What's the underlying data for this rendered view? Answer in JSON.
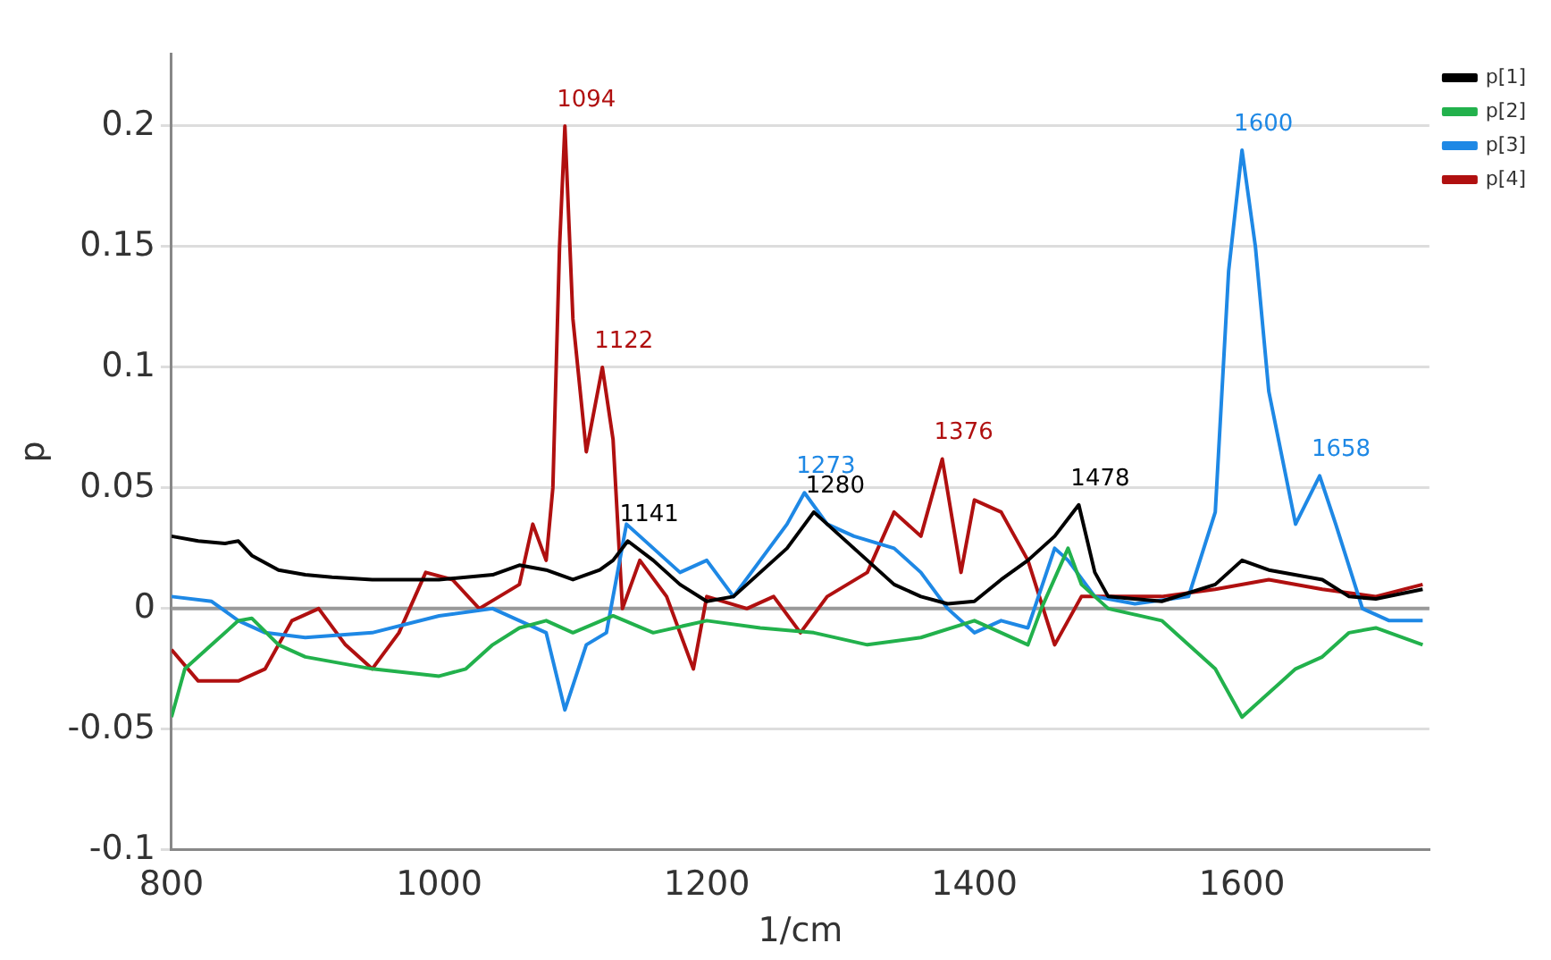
{
  "chart_data": {
    "type": "line",
    "xlabel": "1/cm",
    "ylabel": "p",
    "xlim": [
      800,
      1740
    ],
    "ylim": [
      -0.1,
      0.23
    ],
    "xticks": [
      800,
      1000,
      1200,
      1400,
      1600
    ],
    "yticks": [
      -0.1,
      -0.05,
      0,
      0.05,
      0.1,
      0.15,
      0.2
    ],
    "grid": "y",
    "legend": "top right",
    "marker": "none",
    "line_style": "solid",
    "ref_lines": [
      {
        "axis": "y",
        "value": 0,
        "color": "#999999"
      }
    ],
    "series": [
      {
        "name": "p[1]",
        "color": "#000000",
        "x": [
          800,
          820,
          840,
          850,
          860,
          880,
          900,
          920,
          950,
          1000,
          1040,
          1060,
          1080,
          1100,
          1120,
          1130,
          1141,
          1160,
          1180,
          1200,
          1220,
          1240,
          1260,
          1280,
          1300,
          1320,
          1340,
          1360,
          1380,
          1400,
          1420,
          1440,
          1460,
          1478,
          1490,
          1500,
          1540,
          1580,
          1600,
          1620,
          1660,
          1680,
          1700,
          1735
        ],
        "values": [
          0.03,
          0.028,
          0.027,
          0.028,
          0.022,
          0.016,
          0.014,
          0.013,
          0.012,
          0.012,
          0.014,
          0.018,
          0.016,
          0.012,
          0.016,
          0.02,
          0.028,
          0.02,
          0.01,
          0.003,
          0.005,
          0.015,
          0.025,
          0.04,
          0.03,
          0.02,
          0.01,
          0.005,
          0.002,
          0.003,
          0.012,
          0.02,
          0.03,
          0.043,
          0.015,
          0.005,
          0.003,
          0.01,
          0.02,
          0.016,
          0.012,
          0.005,
          0.004,
          0.008
        ]
      },
      {
        "name": "p[2]",
        "color": "#22b14c",
        "x": [
          800,
          810,
          830,
          850,
          860,
          880,
          900,
          950,
          1000,
          1020,
          1040,
          1060,
          1080,
          1100,
          1130,
          1160,
          1200,
          1240,
          1280,
          1320,
          1360,
          1400,
          1440,
          1450,
          1470,
          1480,
          1500,
          1540,
          1560,
          1580,
          1600,
          1620,
          1640,
          1660,
          1680,
          1700,
          1735
        ],
        "values": [
          -0.045,
          -0.025,
          -0.015,
          -0.005,
          -0.004,
          -0.015,
          -0.02,
          -0.025,
          -0.028,
          -0.025,
          -0.015,
          -0.008,
          -0.005,
          -0.01,
          -0.003,
          -0.01,
          -0.005,
          -0.008,
          -0.01,
          -0.015,
          -0.012,
          -0.005,
          -0.015,
          0,
          0.025,
          0.01,
          0,
          -0.005,
          -0.015,
          -0.025,
          -0.045,
          -0.035,
          -0.025,
          -0.02,
          -0.01,
          -0.008,
          -0.015
        ]
      },
      {
        "name": "p[3]",
        "color": "#1e88e5",
        "x": [
          800,
          830,
          850,
          870,
          900,
          950,
          1000,
          1040,
          1060,
          1080,
          1094,
          1110,
          1125,
          1140,
          1160,
          1180,
          1200,
          1220,
          1240,
          1260,
          1273,
          1290,
          1310,
          1340,
          1360,
          1380,
          1400,
          1420,
          1440,
          1460,
          1470,
          1490,
          1520,
          1560,
          1580,
          1590,
          1600,
          1610,
          1620,
          1640,
          1658,
          1670,
          1690,
          1710,
          1735
        ],
        "values": [
          0.005,
          0.003,
          -0.005,
          -0.01,
          -0.012,
          -0.01,
          -0.003,
          0,
          -0.005,
          -0.01,
          -0.042,
          -0.015,
          -0.01,
          0.035,
          0.025,
          0.015,
          0.02,
          0.005,
          0.02,
          0.035,
          0.048,
          0.035,
          0.03,
          0.025,
          0.015,
          0,
          -0.01,
          -0.005,
          -0.008,
          0.025,
          0.02,
          0.005,
          0.002,
          0.005,
          0.04,
          0.14,
          0.19,
          0.15,
          0.09,
          0.035,
          0.055,
          0.035,
          0,
          -0.005,
          -0.005
        ]
      },
      {
        "name": "p[4]",
        "color": "#b01010",
        "x": [
          800,
          820,
          850,
          870,
          890,
          910,
          930,
          950,
          970,
          990,
          1010,
          1030,
          1060,
          1070,
          1080,
          1085,
          1090,
          1094,
          1100,
          1110,
          1122,
          1130,
          1137,
          1150,
          1170,
          1190,
          1200,
          1230,
          1250,
          1270,
          1290,
          1320,
          1340,
          1360,
          1376,
          1390,
          1400,
          1420,
          1440,
          1460,
          1480,
          1500,
          1540,
          1580,
          1620,
          1660,
          1700,
          1735
        ],
        "values": [
          -0.017,
          -0.03,
          -0.03,
          -0.025,
          -0.005,
          0,
          -0.015,
          -0.025,
          -0.01,
          0.015,
          0.012,
          0,
          0.01,
          0.035,
          0.02,
          0.05,
          0.15,
          0.2,
          0.12,
          0.065,
          0.1,
          0.07,
          0,
          0.02,
          0.005,
          -0.025,
          0.005,
          0,
          0.005,
          -0.01,
          0.005,
          0.015,
          0.04,
          0.03,
          0.062,
          0.015,
          0.045,
          0.04,
          0.02,
          -0.015,
          0.005,
          0.005,
          0.005,
          0.008,
          0.012,
          0.008,
          0.005,
          0.01
        ]
      }
    ],
    "annotations": [
      {
        "text": "1094",
        "x": 1094,
        "y": 0.2
      },
      {
        "text": "1122",
        "x": 1122,
        "y": 0.1
      },
      {
        "text": "1141",
        "x": 1141,
        "y": 0.028
      },
      {
        "text": "1273",
        "x": 1273,
        "y": 0.048
      },
      {
        "text": "1280",
        "x": 1280,
        "y": 0.04
      },
      {
        "text": "1376",
        "x": 1376,
        "y": 0.062
      },
      {
        "text": "1478",
        "x": 1478,
        "y": 0.043
      },
      {
        "text": "1600",
        "x": 1600,
        "y": 0.19
      },
      {
        "text": "1658",
        "x": 1658,
        "y": 0.055
      }
    ]
  }
}
